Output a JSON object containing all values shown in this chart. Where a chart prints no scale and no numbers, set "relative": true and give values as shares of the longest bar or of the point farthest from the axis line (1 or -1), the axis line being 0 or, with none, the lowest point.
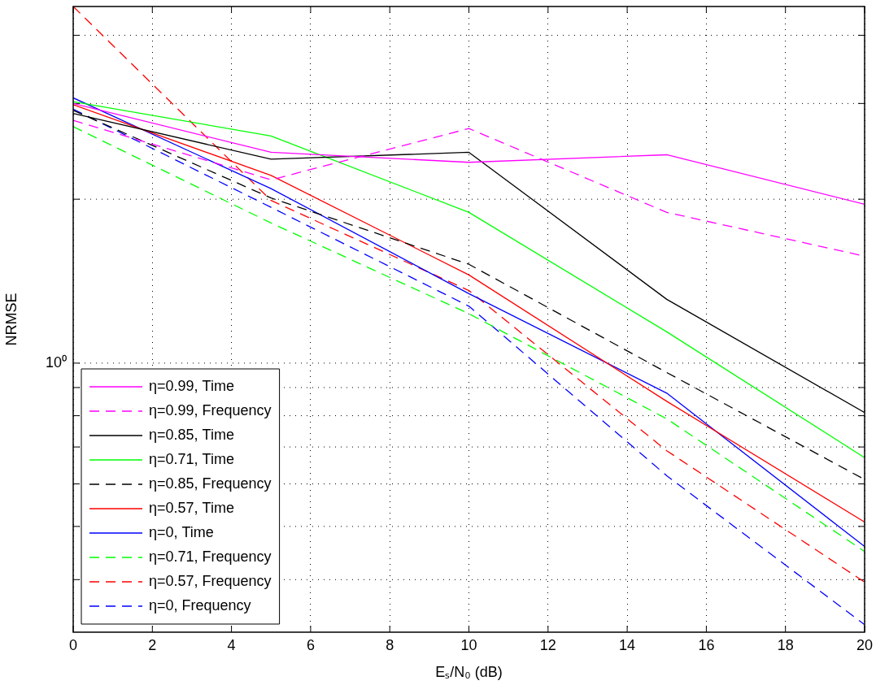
{
  "chart_data": {
    "type": "line",
    "xlabel": "Eₛ/N₀ (dB)",
    "ylabel": "NRMSE",
    "x": [
      0,
      5,
      10,
      15,
      20
    ],
    "xlim": [
      0,
      20
    ],
    "xticks": [
      0,
      2,
      4,
      6,
      8,
      10,
      12,
      14,
      16,
      18,
      20
    ],
    "relative": true,
    "grid": "x",
    "legend": "bottom left",
    "marker": "none",
    "ref_lines": [
      {
        "axis": "y",
        "value": 0.084,
        "label": null,
        "color": "#000000",
        "line_style": "dotted"
      },
      {
        "axis": "y",
        "value": 0.169,
        "label": null,
        "color": "#000000",
        "line_style": "dotted"
      },
      {
        "axis": "y",
        "value": 0.237,
        "label": null,
        "color": "#000000",
        "line_style": "dotted"
      },
      {
        "axis": "y",
        "value": 0.296,
        "label": null,
        "color": "#000000",
        "line_style": "dotted"
      },
      {
        "axis": "y",
        "value": 0.346,
        "label": null,
        "color": "#000000",
        "line_style": "dotted"
      },
      {
        "axis": "y",
        "value": 0.391,
        "label": null,
        "color": "#000000",
        "line_style": "dotted"
      },
      {
        "axis": "y",
        "value": 0.43,
        "label": "10⁰",
        "color": "#000000",
        "line_style": "dotted"
      },
      {
        "axis": "y",
        "value": 0.692,
        "label": null,
        "color": "#000000",
        "line_style": "dotted"
      },
      {
        "axis": "y",
        "value": 0.845,
        "label": null,
        "color": "#000000",
        "line_style": "dotted"
      },
      {
        "axis": "y",
        "value": 0.954,
        "label": null,
        "color": "#000000",
        "line_style": "dotted"
      }
    ],
    "series": [
      {
        "name": "η=0.99, Time",
        "color": "#ff00ff",
        "line_style": "solid",
        "values": [
          0.845,
          0.767,
          0.751,
          0.763,
          0.684
        ]
      },
      {
        "name": "η=0.99, Frequency",
        "color": "#ff00ff",
        "line_style": "dashed",
        "values": [
          0.818,
          0.723,
          0.805,
          0.671,
          0.601
        ]
      },
      {
        "name": "η=0.85, Time",
        "color": "#000000",
        "line_style": "solid",
        "values": [
          0.829,
          0.756,
          0.767,
          0.532,
          0.351
        ]
      },
      {
        "name": "η=0.71, Time",
        "color": "#00ff00",
        "line_style": "solid",
        "values": [
          0.848,
          0.793,
          0.671,
          0.48,
          0.279
        ]
      },
      {
        "name": "η=0.85, Frequency",
        "color": "#000000",
        "line_style": "dashed",
        "values": [
          0.834,
          0.694,
          0.588,
          0.415,
          0.244
        ]
      },
      {
        "name": "η=0.57, Time",
        "color": "#ff0000",
        "line_style": "solid",
        "values": [
          0.843,
          0.73,
          0.571,
          0.369,
          0.176
        ]
      },
      {
        "name": "η=0, Time",
        "color": "#0000ff",
        "line_style": "solid",
        "values": [
          0.854,
          0.709,
          0.541,
          0.382,
          0.137
        ]
      },
      {
        "name": "η=0.71, Frequency",
        "color": "#00ff00",
        "line_style": "dashed",
        "values": [
          0.808,
          0.654,
          0.509,
          0.341,
          0.129
        ]
      },
      {
        "name": "η=0.57, Frequency",
        "color": "#ff0000",
        "line_style": "dashed",
        "values": [
          1.0,
          0.69,
          0.546,
          0.29,
          0.08
        ]
      },
      {
        "name": "η=0, Frequency",
        "color": "#0000ff",
        "line_style": "dashed",
        "values": [
          0.836,
          0.679,
          0.521,
          0.25,
          0.012
        ]
      }
    ]
  }
}
